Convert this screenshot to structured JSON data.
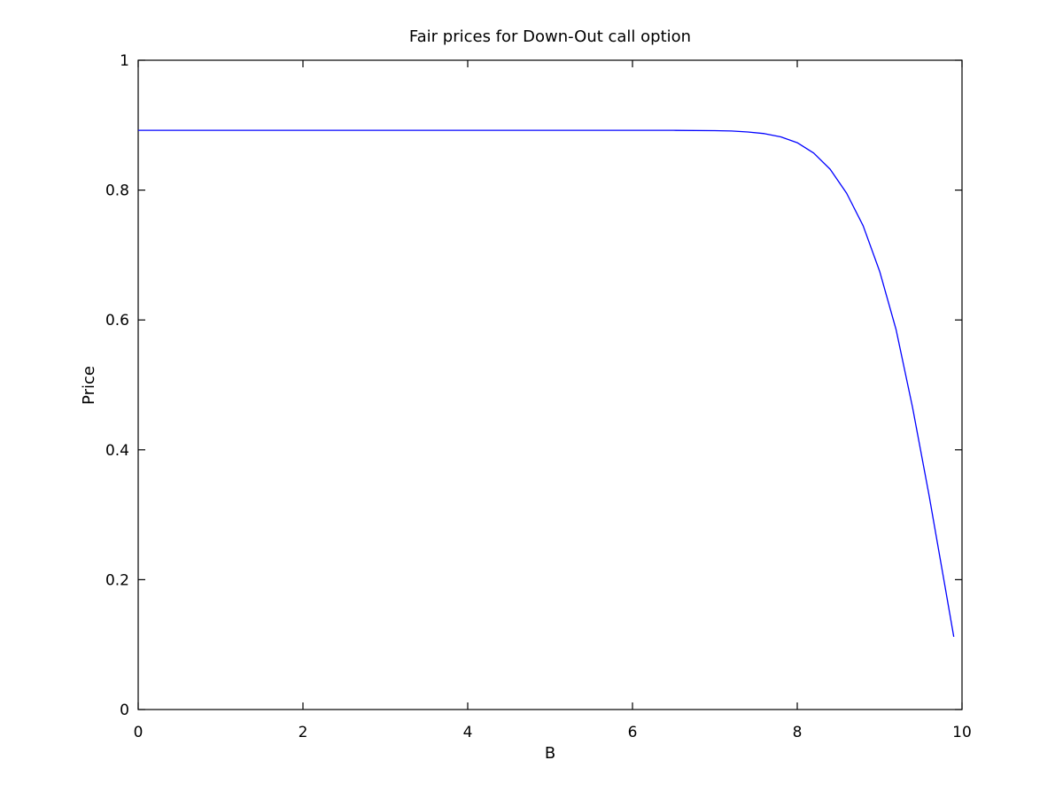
{
  "chart_data": {
    "type": "line",
    "title": "Fair prices for Down-Out call option",
    "xlabel": "B",
    "ylabel": "Price",
    "xlim": [
      0,
      10
    ],
    "ylim": [
      0,
      1
    ],
    "xticks": [
      "0",
      "2",
      "4",
      "6",
      "8",
      "10"
    ],
    "yticks": [
      "0",
      "0.2",
      "0.4",
      "0.6",
      "0.8",
      "1"
    ],
    "grid": false,
    "series": [
      {
        "color": "#0000ff",
        "x": [
          0,
          1,
          2,
          3,
          4,
          5,
          6,
          6.5,
          7,
          7.2,
          7.4,
          7.6,
          7.8,
          8.0,
          8.2,
          8.4,
          8.6,
          8.8,
          9.0,
          9.2,
          9.4,
          9.6,
          9.8,
          9.9
        ],
        "y": [
          0.892,
          0.892,
          0.892,
          0.892,
          0.892,
          0.892,
          0.892,
          0.892,
          0.8915,
          0.891,
          0.8895,
          0.887,
          0.882,
          0.873,
          0.857,
          0.832,
          0.795,
          0.745,
          0.675,
          0.585,
          0.465,
          0.33,
          0.185,
          0.112
        ]
      }
    ]
  }
}
